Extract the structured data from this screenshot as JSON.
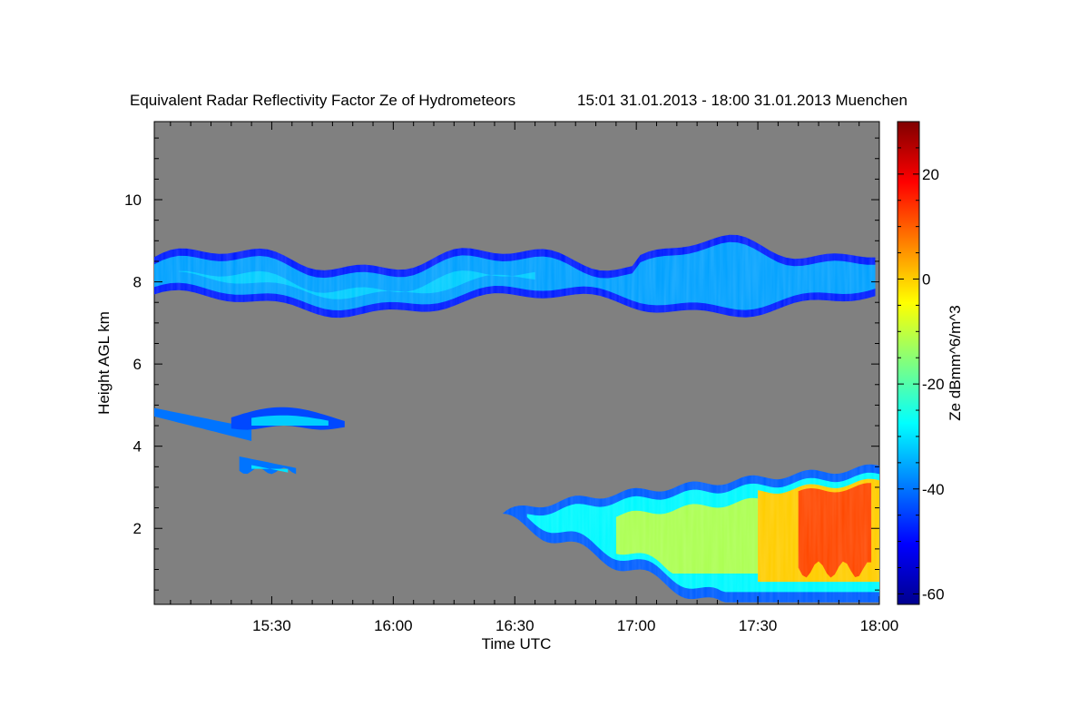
{
  "chart_data": {
    "type": "heatmap",
    "title": "Equivalent Radar Reflectivity Factor Ze of Hydrometeors",
    "subtitle": "15:01 31.01.2013 - 18:00 31.01.2013 Muenchen",
    "xlabel": "Time UTC",
    "ylabel": "Height AGL km",
    "colorbar_label": "Ze dBmm^6/m^3",
    "x_range": [
      "15:01",
      "18:00"
    ],
    "ylim": [
      0.15,
      11.9
    ],
    "zlim": [
      -62,
      30
    ],
    "x_ticks": [
      {
        "label": "15:30",
        "minutes": 30
      },
      {
        "label": "16:00",
        "minutes": 60
      },
      {
        "label": "16:30",
        "minutes": 90
      },
      {
        "label": "17:00",
        "minutes": 120
      },
      {
        "label": "17:30",
        "minutes": 150
      },
      {
        "label": "18:00",
        "minutes": 180
      }
    ],
    "y_ticks": [
      2,
      4,
      6,
      8,
      10
    ],
    "colorbar_ticks": [
      20,
      0,
      -20,
      -40,
      -60
    ],
    "background_color": "#808080",
    "colormap": "jet",
    "features": [
      {
        "name": "upper cirrus layer",
        "time_start": "15:01",
        "time_end": "18:00",
        "base_km": 7.1,
        "top_km": 9.0,
        "ze_dbz_typical": -30
      },
      {
        "name": "mid-level layer",
        "time_start": "15:01",
        "time_end": "15:48",
        "base_km": 3.3,
        "top_km": 5.2,
        "ze_dbz_typical": -32
      },
      {
        "name": "precipitating cloud",
        "time_start": "16:27",
        "time_end": "18:00",
        "base_km": 0.2,
        "top_km": 3.5,
        "ze_dbz_max": 18
      }
    ]
  }
}
